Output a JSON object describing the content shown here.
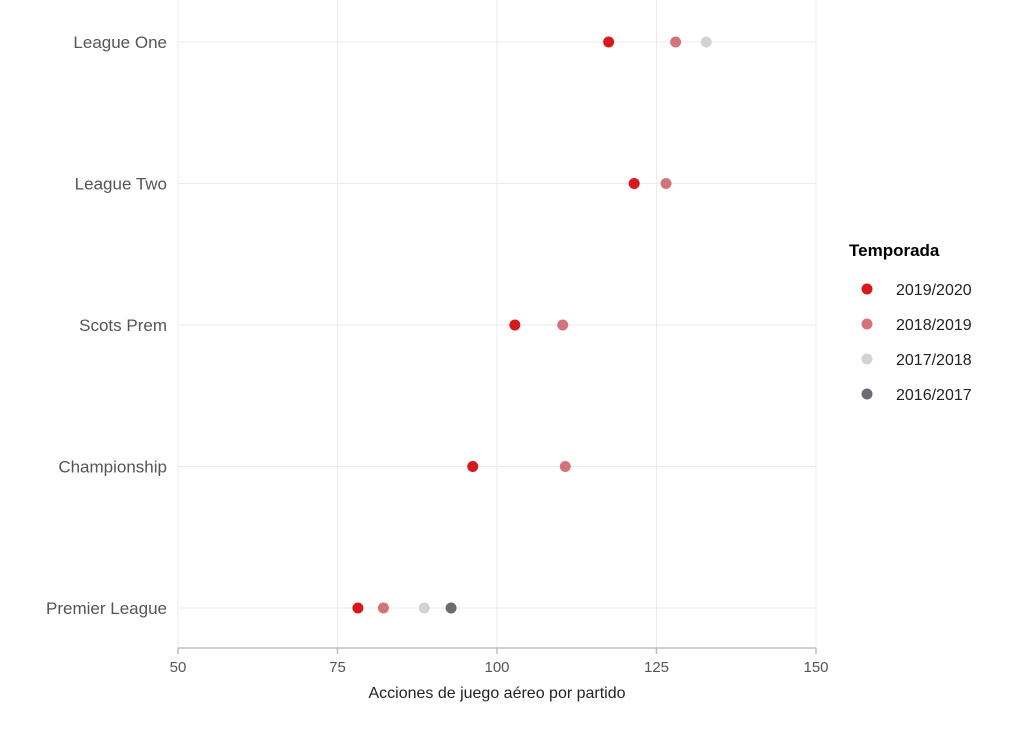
{
  "chart_data": {
    "type": "scatter",
    "xlabel": "Acciones de juego aéreo por partido",
    "xlim": [
      50,
      150
    ],
    "x_ticks": [
      50,
      75,
      100,
      125,
      150
    ],
    "categories": [
      "League One",
      "League Two",
      "Scots Prem",
      "Championship",
      "Premier League"
    ],
    "grid": true,
    "legend": {
      "title": "Temporada",
      "placement": "right"
    },
    "series": [
      {
        "name": "2019/2020",
        "color": "#d7191c",
        "values": [
          117.5,
          121.5,
          102.8,
          96.2,
          78.2
        ]
      },
      {
        "name": "2018/2019",
        "color": "#d5737a",
        "values": [
          128.0,
          126.5,
          110.3,
          110.7,
          82.2
        ]
      },
      {
        "name": "2017/2018",
        "color": "#d3d3d3",
        "values": [
          132.8,
          null,
          null,
          null,
          88.6
        ]
      },
      {
        "name": "2016/2017",
        "color": "#6b6b75",
        "values": [
          null,
          null,
          null,
          null,
          92.8
        ]
      }
    ]
  }
}
